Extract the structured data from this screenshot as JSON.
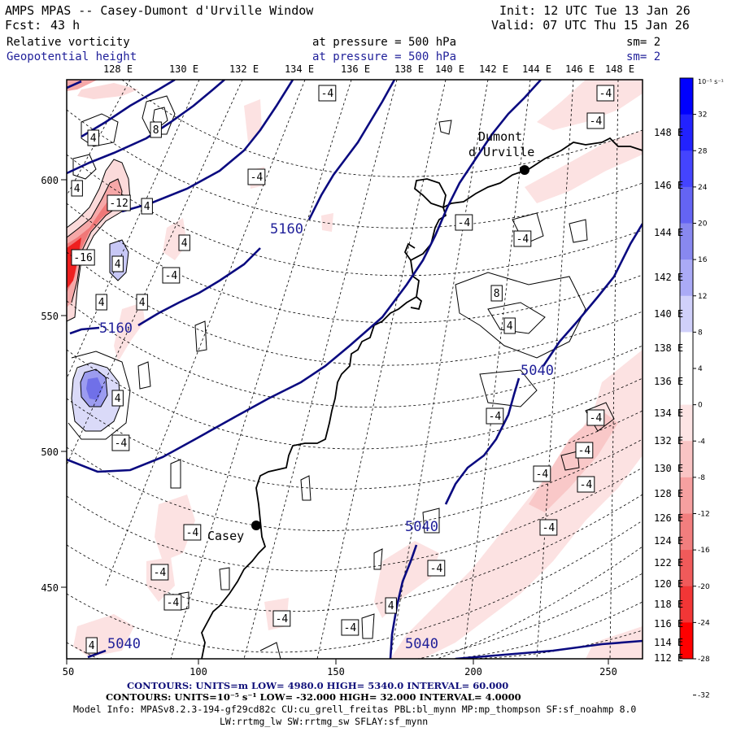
{
  "header": {
    "title": "AMPS MPAS -- Casey-Dumont d'Urville Window",
    "init": "Init: 12 UTC Tue 13 Jan 26",
    "fcst_label": "Fcst:",
    "fcst_value": "43 h",
    "valid": "Valid: 07 UTC Thu 15 Jan 26",
    "field1_name": "Relative vorticity",
    "field1_level": "at pressure =  500 hPa",
    "field1_sm": "sm= 2",
    "field2_name": "Geopotential height",
    "field2_level": "at pressure =  500 hPa",
    "field2_sm": "sm= 2"
  },
  "colors": {
    "height_contour": "#0a0a80",
    "vort_contour": "#000000",
    "coastline": "#000000",
    "title_blue": "#1f1f99",
    "footer_blue": "#10107a"
  },
  "map": {
    "top_lon_labels": [
      "128 E",
      "130 E",
      "132 E",
      "134 E",
      "136 E",
      "138 E",
      "140 E",
      "142 E",
      "144 E",
      "146 E",
      "148 E"
    ],
    "right_lon_labels": [
      "148 E",
      "146 E",
      "144 E",
      "142 E",
      "140 E",
      "138 E",
      "136 E",
      "134 E",
      "132 E",
      "130 E",
      "128 E",
      "126 E",
      "124 E",
      "122 E",
      "120 E",
      "118 E",
      "116 E",
      "114 E",
      "112 E"
    ],
    "x_grid_labels": [
      "50",
      "100",
      "150",
      "200",
      "250"
    ],
    "y_grid_labels": [
      "600",
      "550",
      "500",
      "450"
    ],
    "height_labels": [
      "5160",
      "5160",
      "5040",
      "5040",
      "5040",
      "5040"
    ],
    "vort_labels": [
      "-4",
      "-4",
      "8",
      "-4",
      "4",
      "-4",
      "4",
      "-12",
      "4",
      "-4",
      "-16",
      "4",
      "-4",
      "4",
      "-4",
      "4",
      "4",
      "8",
      "4",
      "4",
      "-4",
      "-4",
      "-4",
      "-4",
      "-4",
      "-4",
      "-4",
      "-4",
      "-4",
      "-4",
      "-4",
      "4",
      "-4",
      "-4",
      "4",
      "-4",
      "-4"
    ],
    "stations": [
      {
        "name": "Casey",
        "icon": "station-dot"
      },
      {
        "name": "Dumont\nd'Urville",
        "icon": "station-dot"
      }
    ]
  },
  "colorbar": {
    "unit_label": "10⁻⁵ s⁻¹",
    "ticks": [
      "32",
      "28",
      "24",
      "20",
      "16",
      "12",
      "8",
      "4",
      "0",
      "-4",
      "-8",
      "-12",
      "-16",
      "-20",
      "-24",
      "-28",
      "-32"
    ],
    "colors": [
      "#0000ff",
      "#2222ff",
      "#4444ff",
      "#6464f4",
      "#8888f0",
      "#aaaaf6",
      "#d0d0fa",
      "#ffffff",
      "#ffffff",
      "#fde4e4",
      "#f9c4c4",
      "#f6a0a0",
      "#f27e7e",
      "#f05a5a",
      "#f23636",
      "#ff0000"
    ]
  },
  "footer": {
    "line1_label": "CONTOURS:  UNITS=m  LOW=  4980.0          HIGH=  5340.0        INTERVAL=   60.000",
    "line2_label": "CONTOURS:  UNITS=10⁻⁵ s⁻¹  LOW= -32.000         HIGH=  32.000         INTERVAL=   4.0000",
    "line3": "Model Info: MPASv8.2.3-194-gf29cd82c CU:cu_grell_freitas PBL:bl_mynn MP:mp_thompson SF:sf_noahmp 8.0",
    "line4": "LW:rrtmg_lw SW:rrtmg_sw SFLAY:sf_mynn"
  }
}
